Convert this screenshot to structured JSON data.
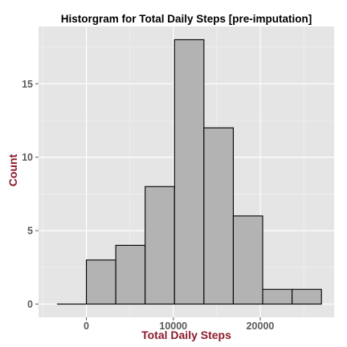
{
  "chart_data": {
    "type": "bar",
    "title": "Historgram for Total Daily Steps [pre-imputation]",
    "xlabel": "Total Daily Steps",
    "ylabel": "Count",
    "bin_width": 3380,
    "bin_starts": [
      -3380,
      0,
      3380,
      6760,
      10140,
      13520,
      16900,
      20280,
      23660
    ],
    "values": [
      0,
      3,
      4,
      8,
      18,
      12,
      6,
      1,
      1
    ],
    "xlim": [
      -5500,
      28500
    ],
    "ylim": [
      -0.9,
      18.9
    ],
    "xticks": [
      0,
      10000,
      20000
    ],
    "xtick_labels": [
      "0",
      "10000",
      "20000"
    ],
    "yticks": [
      0,
      5,
      10,
      15
    ],
    "ytick_labels": [
      "0",
      "5",
      "10",
      "15"
    ],
    "grid": true,
    "colors": {
      "panel_background": "#e5e5e5",
      "grid": "#ffffff",
      "bar_fill": "#b3b3b3",
      "bar_outline": "#000000",
      "axis_label": "#8b1a2b"
    }
  }
}
